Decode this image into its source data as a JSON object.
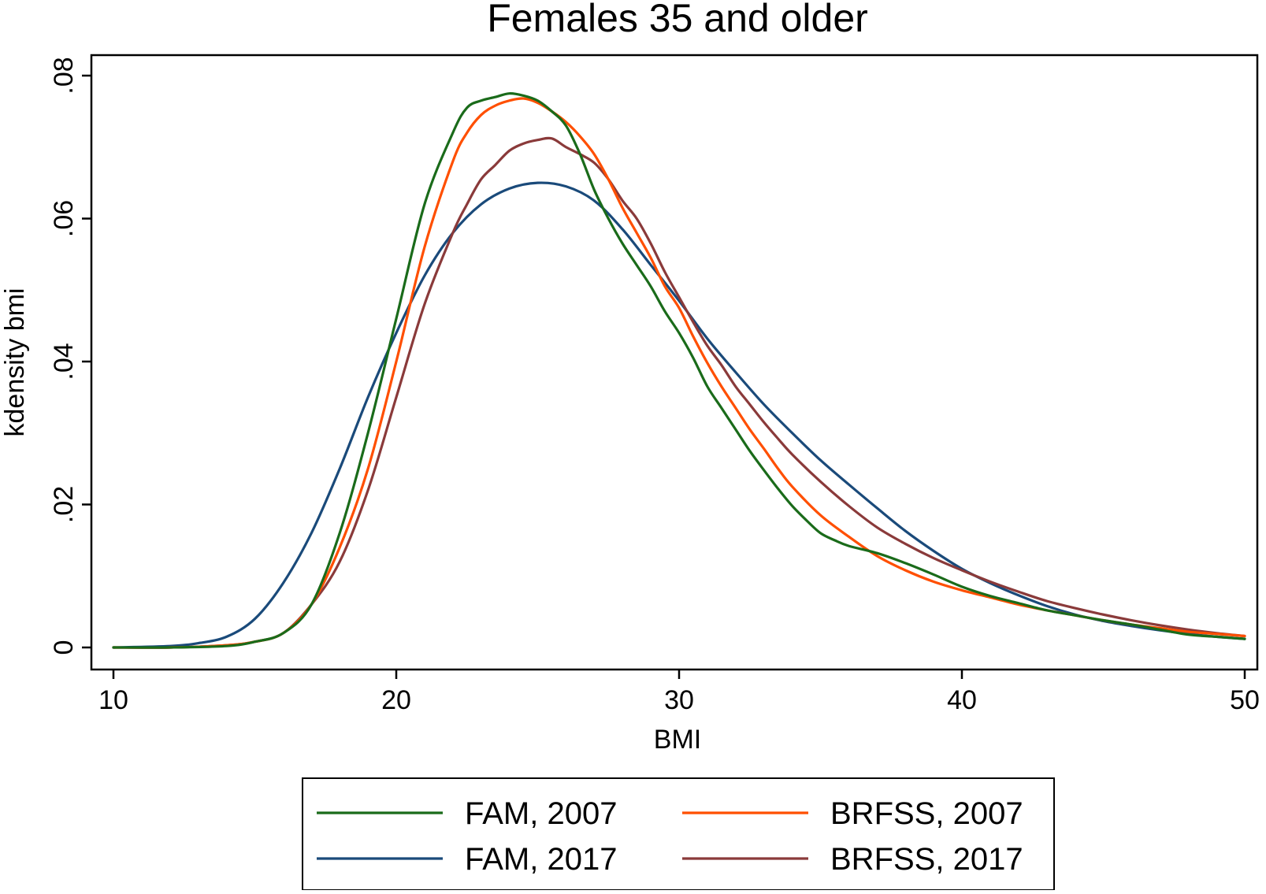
{
  "chart_data": {
    "type": "line",
    "title": "Females 35 and older",
    "xlabel": "BMI",
    "ylabel": "kdensity bmi",
    "xlim": [
      10,
      50
    ],
    "ylim": [
      0,
      0.08
    ],
    "x_ticks": [
      10,
      20,
      30,
      40,
      50
    ],
    "x_tick_labels": [
      "10",
      "20",
      "30",
      "40",
      "50"
    ],
    "y_ticks": [
      0,
      0.02,
      0.04,
      0.06,
      0.08
    ],
    "y_tick_labels": [
      "0",
      ".02",
      ".04",
      ".06",
      ".08"
    ],
    "grid": false,
    "legend_position": "bottom",
    "series": [
      {
        "name": "FAM, 2007",
        "color": "#1a6b1a",
        "points": [
          [
            10,
            0
          ],
          [
            12,
            0
          ],
          [
            14,
            0.0002
          ],
          [
            15,
            0.0008
          ],
          [
            16,
            0.002
          ],
          [
            17,
            0.006
          ],
          [
            18,
            0.016
          ],
          [
            19,
            0.03
          ],
          [
            20,
            0.046
          ],
          [
            21,
            0.062
          ],
          [
            22,
            0.072
          ],
          [
            22.5,
            0.0755
          ],
          [
            23,
            0.0765
          ],
          [
            23.5,
            0.077
          ],
          [
            24,
            0.0775
          ],
          [
            24.5,
            0.0772
          ],
          [
            25,
            0.0765
          ],
          [
            25.5,
            0.075
          ],
          [
            26,
            0.073
          ],
          [
            26.5,
            0.069
          ],
          [
            27,
            0.064
          ],
          [
            27.5,
            0.06
          ],
          [
            28,
            0.0565
          ],
          [
            28.5,
            0.0535
          ],
          [
            29,
            0.0505
          ],
          [
            29.5,
            0.047
          ],
          [
            30,
            0.044
          ],
          [
            30.5,
            0.0405
          ],
          [
            31,
            0.0365
          ],
          [
            31.5,
            0.0335
          ],
          [
            32,
            0.0305
          ],
          [
            32.5,
            0.0275
          ],
          [
            33,
            0.0248
          ],
          [
            33.5,
            0.0222
          ],
          [
            34,
            0.0198
          ],
          [
            34.5,
            0.0178
          ],
          [
            35,
            0.016
          ],
          [
            35.5,
            0.015
          ],
          [
            36,
            0.0142
          ],
          [
            37,
            0.0132
          ],
          [
            38,
            0.0118
          ],
          [
            39,
            0.0102
          ],
          [
            40,
            0.0085
          ],
          [
            41,
            0.0072
          ],
          [
            42,
            0.0062
          ],
          [
            43,
            0.0052
          ],
          [
            44,
            0.0045
          ],
          [
            45,
            0.0038
          ],
          [
            46,
            0.0032
          ],
          [
            47,
            0.0025
          ],
          [
            48,
            0.0018
          ],
          [
            49,
            0.0015
          ],
          [
            50,
            0.0012
          ]
        ]
      },
      {
        "name": "BRFSS, 2007",
        "color": "#ff4f00",
        "points": [
          [
            10,
            0
          ],
          [
            12,
            0
          ],
          [
            14,
            0.0003
          ],
          [
            15,
            0.0008
          ],
          [
            16,
            0.002
          ],
          [
            17,
            0.006
          ],
          [
            18,
            0.014
          ],
          [
            19,
            0.025
          ],
          [
            20,
            0.04
          ],
          [
            21,
            0.056
          ],
          [
            22,
            0.068
          ],
          [
            22.5,
            0.072
          ],
          [
            23,
            0.0745
          ],
          [
            23.5,
            0.0758
          ],
          [
            24,
            0.0765
          ],
          [
            24.5,
            0.0768
          ],
          [
            25,
            0.0762
          ],
          [
            25.5,
            0.075
          ],
          [
            26,
            0.0735
          ],
          [
            26.5,
            0.0715
          ],
          [
            27,
            0.069
          ],
          [
            27.5,
            0.0655
          ],
          [
            28,
            0.0615
          ],
          [
            28.5,
            0.058
          ],
          [
            29,
            0.0545
          ],
          [
            29.5,
            0.0505
          ],
          [
            30,
            0.0475
          ],
          [
            30.5,
            0.0435
          ],
          [
            31,
            0.0398
          ],
          [
            31.5,
            0.0365
          ],
          [
            32,
            0.0335
          ],
          [
            32.5,
            0.0305
          ],
          [
            33,
            0.0278
          ],
          [
            33.5,
            0.025
          ],
          [
            34,
            0.0225
          ],
          [
            35,
            0.0185
          ],
          [
            36,
            0.0155
          ],
          [
            37,
            0.0128
          ],
          [
            38,
            0.0108
          ],
          [
            39,
            0.0092
          ],
          [
            40,
            0.008
          ],
          [
            41,
            0.007
          ],
          [
            42,
            0.006
          ],
          [
            43,
            0.0052
          ],
          [
            44,
            0.0045
          ],
          [
            45,
            0.0038
          ],
          [
            46,
            0.0032
          ],
          [
            47,
            0.0027
          ],
          [
            48,
            0.0022
          ],
          [
            49,
            0.0019
          ],
          [
            50,
            0.0016
          ]
        ]
      },
      {
        "name": "FAM, 2017",
        "color": "#1a4a7a",
        "points": [
          [
            10,
            0
          ],
          [
            12,
            0.0002
          ],
          [
            13,
            0.0006
          ],
          [
            14,
            0.0015
          ],
          [
            15,
            0.004
          ],
          [
            16,
            0.009
          ],
          [
            17,
            0.016
          ],
          [
            18,
            0.025
          ],
          [
            19,
            0.035
          ],
          [
            20,
            0.044
          ],
          [
            21,
            0.052
          ],
          [
            22,
            0.058
          ],
          [
            23,
            0.062
          ],
          [
            24,
            0.0642
          ],
          [
            25,
            0.065
          ],
          [
            26,
            0.0645
          ],
          [
            27,
            0.0625
          ],
          [
            28,
            0.0585
          ],
          [
            29,
            0.0535
          ],
          [
            30,
            0.0485
          ],
          [
            31,
            0.0432
          ],
          [
            32,
            0.0385
          ],
          [
            33,
            0.034
          ],
          [
            34,
            0.03
          ],
          [
            35,
            0.0262
          ],
          [
            36,
            0.0228
          ],
          [
            37,
            0.0195
          ],
          [
            38,
            0.0163
          ],
          [
            39,
            0.0135
          ],
          [
            40,
            0.011
          ],
          [
            41,
            0.009
          ],
          [
            42,
            0.0073
          ],
          [
            43,
            0.0058
          ],
          [
            44,
            0.0046
          ],
          [
            45,
            0.0037
          ],
          [
            46,
            0.003
          ],
          [
            47,
            0.0024
          ],
          [
            48,
            0.0019
          ],
          [
            49,
            0.0015
          ],
          [
            50,
            0.0012
          ]
        ]
      },
      {
        "name": "BRFSS, 2017",
        "color": "#8a3a3a",
        "points": [
          [
            10,
            0
          ],
          [
            12,
            0
          ],
          [
            14,
            0.0003
          ],
          [
            15,
            0.0008
          ],
          [
            16,
            0.002
          ],
          [
            17,
            0.006
          ],
          [
            18,
            0.012
          ],
          [
            19,
            0.022
          ],
          [
            20,
            0.035
          ],
          [
            21,
            0.048
          ],
          [
            22,
            0.058
          ],
          [
            22.5,
            0.062
          ],
          [
            23,
            0.0655
          ],
          [
            23.5,
            0.0675
          ],
          [
            24,
            0.0695
          ],
          [
            24.5,
            0.0705
          ],
          [
            25,
            0.071
          ],
          [
            25.5,
            0.0712
          ],
          [
            26,
            0.07
          ],
          [
            26.5,
            0.069
          ],
          [
            27,
            0.0678
          ],
          [
            27.5,
            0.0655
          ],
          [
            28,
            0.0625
          ],
          [
            28.5,
            0.06
          ],
          [
            29,
            0.0565
          ],
          [
            29.5,
            0.0525
          ],
          [
            30,
            0.049
          ],
          [
            30.5,
            0.0455
          ],
          [
            31,
            0.0422
          ],
          [
            31.5,
            0.0395
          ],
          [
            32,
            0.0365
          ],
          [
            32.5,
            0.034
          ],
          [
            33,
            0.0315
          ],
          [
            33.5,
            0.0292
          ],
          [
            34,
            0.027
          ],
          [
            35,
            0.0232
          ],
          [
            36,
            0.0198
          ],
          [
            37,
            0.0168
          ],
          [
            38,
            0.0145
          ],
          [
            39,
            0.0125
          ],
          [
            40,
            0.0108
          ],
          [
            41,
            0.0092
          ],
          [
            42,
            0.0078
          ],
          [
            43,
            0.0065
          ],
          [
            44,
            0.0055
          ],
          [
            45,
            0.0046
          ],
          [
            46,
            0.0038
          ],
          [
            47,
            0.0031
          ],
          [
            48,
            0.0025
          ],
          [
            49,
            0.002
          ],
          [
            50,
            0.0016
          ]
        ]
      }
    ],
    "legend_order": [
      "FAM, 2007",
      "BRFSS, 2007",
      "FAM, 2017",
      "BRFSS, 2017"
    ]
  }
}
